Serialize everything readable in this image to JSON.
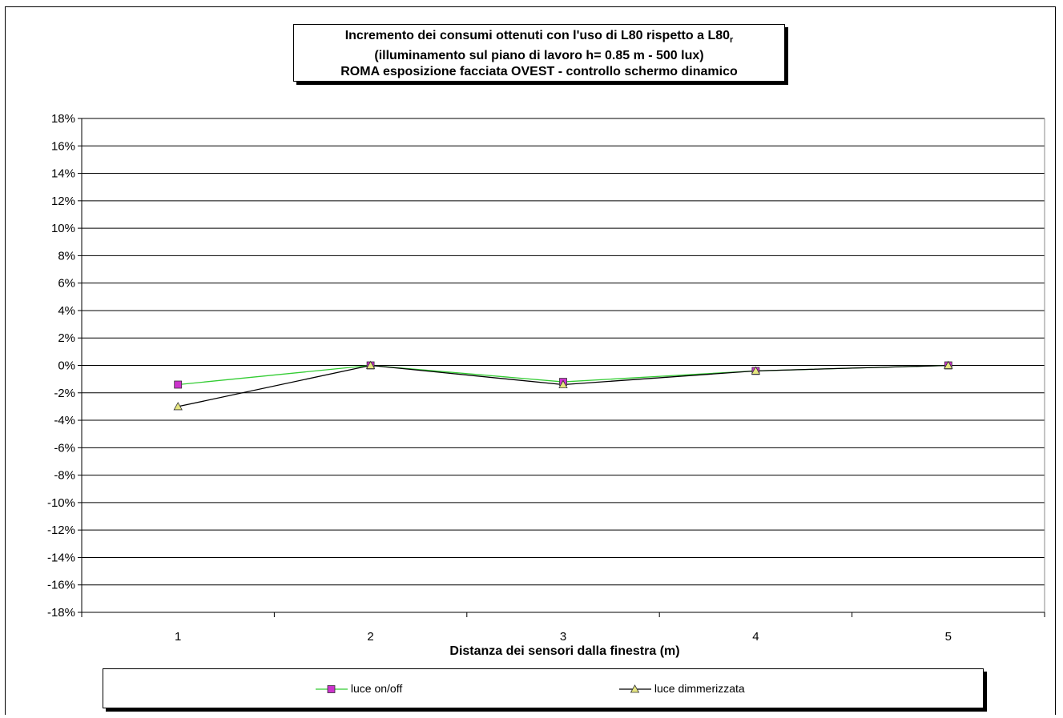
{
  "chart_data": {
    "type": "line",
    "title": "Incremento dei consumi ottenuti con l'uso di L80 rispetto a L80r",
    "title_lines": [
      "Incremento dei consumi ottenuti con l'uso di L80 rispetto a L80",
      "(illuminamento sul piano di lavoro h= 0.85 m - 500 lux)",
      "ROMA esposizione facciata OVEST - controllo schermo dinamico"
    ],
    "title_subscript": "r",
    "xlabel": "Distanza dei sensori dalla finestra (m)",
    "ylabel": "",
    "categories": [
      "1",
      "2",
      "3",
      "4",
      "5"
    ],
    "ylim": [
      -0.18,
      0.18
    ],
    "yticks": [
      -0.18,
      -0.16,
      -0.14,
      -0.12,
      -0.1,
      -0.08,
      -0.06,
      -0.04,
      -0.02,
      0,
      0.02,
      0.04,
      0.06,
      0.08,
      0.1,
      0.12,
      0.14,
      0.16,
      0.18
    ],
    "ytick_labels": [
      "-18%",
      "-16%",
      "-14%",
      "-12%",
      "-10%",
      "-8%",
      "-6%",
      "-4%",
      "-2%",
      "0%",
      "2%",
      "4%",
      "6%",
      "8%",
      "10%",
      "12%",
      "14%",
      "16%",
      "18%"
    ],
    "grid": true,
    "legend_position": "bottom",
    "series": [
      {
        "name": "luce on/off",
        "values": [
          -0.014,
          0.0,
          -0.012,
          -0.004,
          0.0
        ],
        "line_color": "#33cc33",
        "marker": "square",
        "marker_color": "#cc33cc"
      },
      {
        "name": "luce dimmerizzata",
        "values": [
          -0.03,
          0.0,
          -0.014,
          -0.004,
          0.0
        ],
        "line_color": "#000000",
        "marker": "triangle",
        "marker_color": "#e6e680"
      }
    ]
  }
}
